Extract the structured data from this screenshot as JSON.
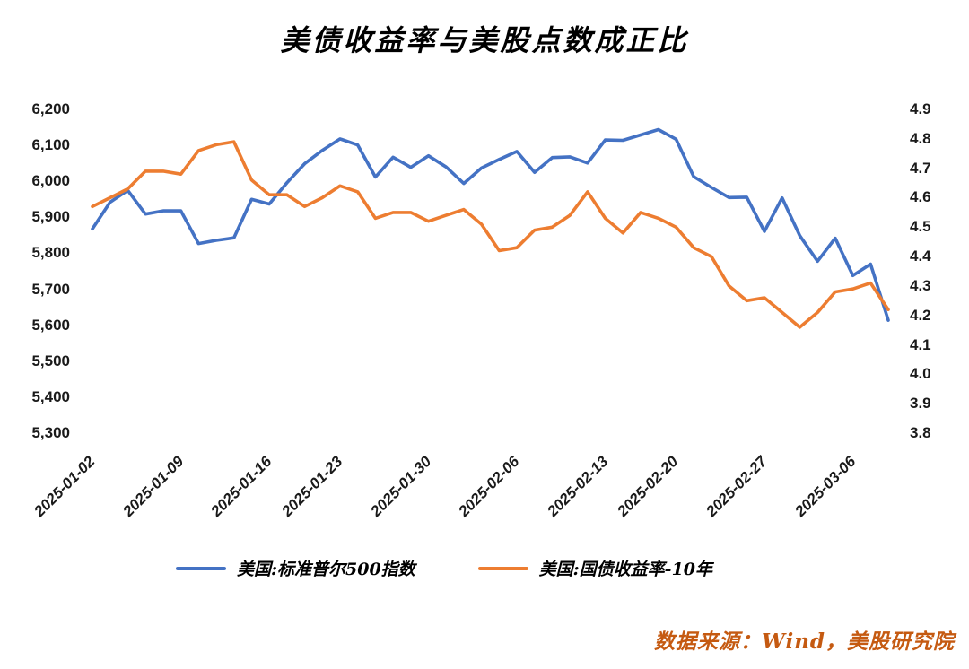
{
  "title": "美债收益率与美股点数成正比",
  "source": "数据来源：Wind，美股研究院",
  "legend": {
    "items": [
      {
        "label": "美国:标准普尔500指数",
        "color": "#4472C4"
      },
      {
        "label": "美国:国债收益率-10年",
        "color": "#ED7D31"
      }
    ]
  },
  "chart_data": {
    "type": "line",
    "title": "美债收益率与美股点数成正比",
    "grid": false,
    "legend_position": "bottom",
    "x": [
      "2025-01-02",
      "2025-01-03",
      "2025-01-06",
      "2025-01-07",
      "2025-01-08",
      "2025-01-09",
      "2025-01-10",
      "2025-01-13",
      "2025-01-14",
      "2025-01-15",
      "2025-01-16",
      "2025-01-17",
      "2025-01-21",
      "2025-01-22",
      "2025-01-23",
      "2025-01-24",
      "2025-01-27",
      "2025-01-28",
      "2025-01-29",
      "2025-01-30",
      "2025-01-31",
      "2025-02-03",
      "2025-02-04",
      "2025-02-05",
      "2025-02-06",
      "2025-02-07",
      "2025-02-10",
      "2025-02-11",
      "2025-02-12",
      "2025-02-13",
      "2025-02-14",
      "2025-02-18",
      "2025-02-19",
      "2025-02-20",
      "2025-02-21",
      "2025-02-24",
      "2025-02-25",
      "2025-02-26",
      "2025-02-27",
      "2025-02-28",
      "2025-03-03",
      "2025-03-04",
      "2025-03-05",
      "2025-03-06",
      "2025-03-07",
      "2025-03-10"
    ],
    "x_tick_labels": [
      "2025-01-02",
      "2025-01-09",
      "2025-01-16",
      "2025-01-23",
      "2025-01-30",
      "2025-02-06",
      "2025-02-13",
      "2025-02-20",
      "2025-02-27",
      "2025-03-06"
    ],
    "x_tick_indices": [
      0,
      5,
      10,
      14,
      19,
      24,
      29,
      33,
      38,
      43
    ],
    "series": [
      {
        "name": "美国:标准普尔500指数",
        "axis": "left",
        "color": "#4472C4",
        "values": [
          5868,
          5942,
          5975,
          5909,
          5918,
          5918,
          5827,
          5836,
          5843,
          5950,
          5937,
          5996,
          6049,
          6086,
          6118,
          6101,
          6012,
          6067,
          6039,
          6071,
          6040,
          5994,
          6037,
          6061,
          6083,
          6025,
          6066,
          6068,
          6051,
          6115,
          6114,
          6129,
          6144,
          6117,
          6013,
          5983,
          5955,
          5956,
          5861,
          5954,
          5849,
          5778,
          5842,
          5738,
          5770,
          5614
        ]
      },
      {
        "name": "美国:国债收益率-10年",
        "axis": "right",
        "color": "#ED7D31",
        "values": [
          4.57,
          4.6,
          4.63,
          4.69,
          4.69,
          4.68,
          4.76,
          4.78,
          4.79,
          4.66,
          4.61,
          4.61,
          4.57,
          4.6,
          4.64,
          4.62,
          4.53,
          4.55,
          4.55,
          4.52,
          4.54,
          4.56,
          4.51,
          4.42,
          4.43,
          4.49,
          4.5,
          4.54,
          4.62,
          4.53,
          4.48,
          4.55,
          4.53,
          4.5,
          4.43,
          4.4,
          4.3,
          4.25,
          4.26,
          4.21,
          4.16,
          4.21,
          4.28,
          4.29,
          4.31,
          4.22
        ]
      }
    ],
    "left_axis": {
      "min": 5300,
      "max": 6200,
      "ticks": [
        "6,200",
        "6,100",
        "6,000",
        "5,900",
        "5,800",
        "5,700",
        "5,600",
        "5,500",
        "5,400",
        "5,300"
      ]
    },
    "right_axis": {
      "min": 3.8,
      "max": 4.9,
      "ticks": [
        "4.9",
        "4.8",
        "4.7",
        "4.6",
        "4.5",
        "4.4",
        "4.3",
        "4.2",
        "4.1",
        "4.0",
        "3.9",
        "3.8"
      ]
    }
  }
}
